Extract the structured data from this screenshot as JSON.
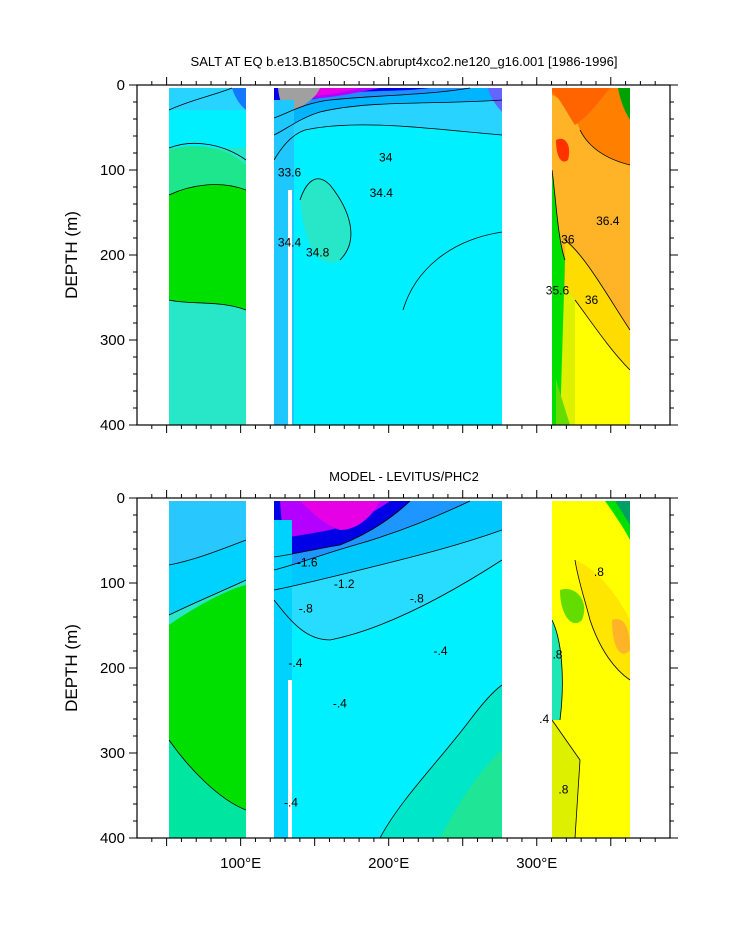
{
  "chart_data": [
    {
      "type": "contour",
      "title": "SALT AT EQ b.e13.B1850C5CN.abrupt4xco2.ne120_g16.001 [1986-1996]",
      "ylabel": "DEPTH (m)",
      "xlabel": "",
      "xlim": [
        30,
        390
      ],
      "ylim": [
        0,
        400
      ],
      "y_ticks": [
        "0",
        "100",
        "200",
        "300",
        "400"
      ],
      "x_ticks": [],
      "contour_labels": [
        {
          "text": "33.6",
          "x": 133,
          "y": 103
        },
        {
          "text": "34",
          "x": 198,
          "y": 85
        },
        {
          "text": "34.4",
          "x": 195,
          "y": 127
        },
        {
          "text": "34.4",
          "x": 133,
          "y": 185
        },
        {
          "text": "34.8",
          "x": 152,
          "y": 197
        },
        {
          "text": "36",
          "x": 321,
          "y": 182
        },
        {
          "text": "36.4",
          "x": 348,
          "y": 160
        },
        {
          "text": "35.6",
          "x": 314,
          "y": 242
        },
        {
          "text": "36",
          "x": 337,
          "y": 253
        }
      ],
      "colors": {
        "water_low": "#00f0ff",
        "ocean_mid": "#00c8ff",
        "low_salinity": "#cc00cc",
        "high_salinity": "#ff8000",
        "green": "#00e000"
      }
    },
    {
      "type": "contour",
      "title": "MODEL - LEVITUS/PHC2",
      "ylabel": "DEPTH (m)",
      "xlabel": "",
      "xlim": [
        30,
        390
      ],
      "ylim": [
        0,
        400
      ],
      "y_ticks": [
        "0",
        "100",
        "200",
        "300",
        "400"
      ],
      "x_ticks": [
        "100°E",
        "200°E",
        "300°E"
      ],
      "contour_labels": [
        {
          "text": "-1.6",
          "x": 145,
          "y": 76
        },
        {
          "text": "-1.2",
          "x": 170,
          "y": 101
        },
        {
          "text": "-.8",
          "x": 144,
          "y": 130
        },
        {
          "text": "-.8",
          "x": 219,
          "y": 118
        },
        {
          "text": "-.4",
          "x": 235,
          "y": 180
        },
        {
          "text": "-.4",
          "x": 137,
          "y": 194
        },
        {
          "text": "-.4",
          "x": 167,
          "y": 242
        },
        {
          "text": "-.4",
          "x": 134,
          "y": 358
        },
        {
          "text": ".8",
          "x": 342,
          "y": 87
        },
        {
          "text": ".8",
          "x": 314,
          "y": 184
        },
        {
          "text": ".8",
          "x": 318,
          "y": 343
        },
        {
          "text": ".4",
          "x": 305,
          "y": 260
        }
      ],
      "colors": {
        "negative": "#00c8ff",
        "most_negative": "#cc00cc",
        "positive": "#ffff00",
        "green": "#00e000"
      }
    }
  ]
}
